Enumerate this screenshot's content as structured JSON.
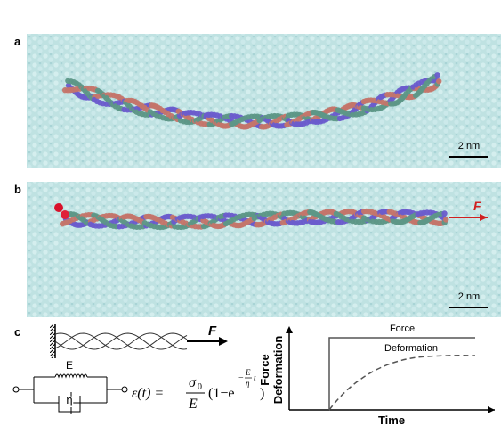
{
  "panels": [
    {
      "label": "a",
      "scale_bar": "2 nm"
    },
    {
      "label": "b",
      "scale_bar": "2 nm",
      "force": "F"
    },
    {
      "label": "c",
      "force": "F",
      "spring": "E",
      "dashpot": "η",
      "equation": {
        "lhs": "ε(t) =",
        "numerator": "σ",
        "numerator_sub": "0",
        "denominator": "E",
        "factor": "(1−e",
        "exp_sign": "−",
        "exp_num": "E",
        "exp_den": "η",
        "exp_t": "t",
        "close": ")"
      },
      "graph": {
        "y_label_top": "Force",
        "y_label_bottom": "Deformation",
        "x_label": "Time",
        "curves": [
          "Force",
          "Deformation"
        ]
      }
    }
  ]
}
